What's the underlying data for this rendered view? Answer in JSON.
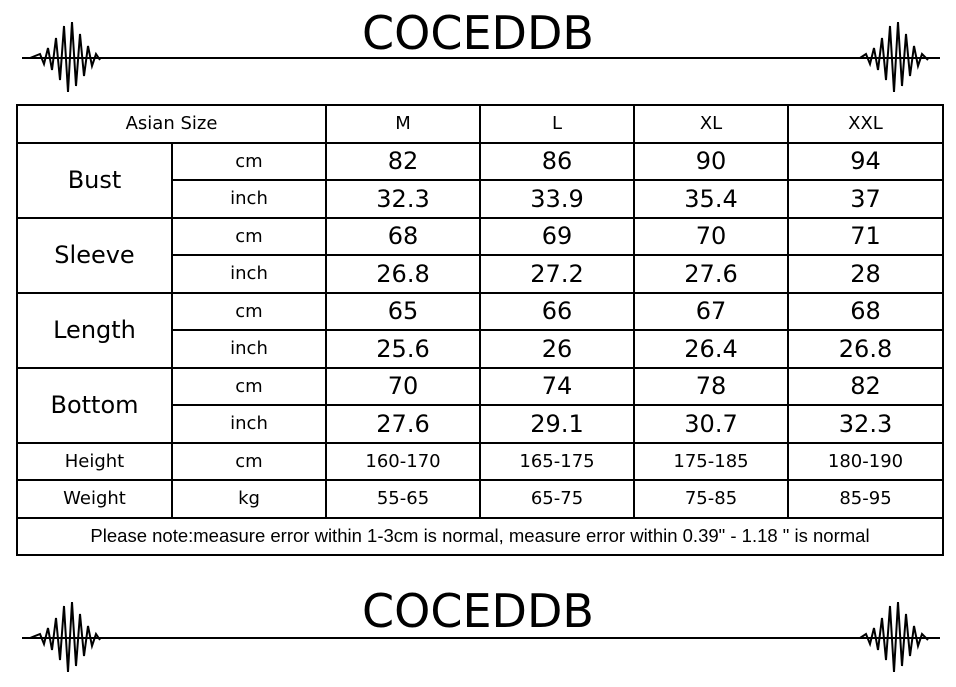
{
  "header": {
    "title": "COCEDDB"
  },
  "table": {
    "columns": [
      "Asian Size",
      "M",
      "L",
      "XL",
      "XXL"
    ],
    "groups": [
      {
        "label": "Bust",
        "rows": [
          {
            "unit": "cm",
            "values": [
              82,
              86,
              90,
              94
            ]
          },
          {
            "unit": "inch",
            "values": [
              32.3,
              33.9,
              35.4,
              37
            ]
          }
        ]
      },
      {
        "label": "Sleeve",
        "rows": [
          {
            "unit": "cm",
            "values": [
              68,
              69,
              70,
              71
            ]
          },
          {
            "unit": "inch",
            "values": [
              26.8,
              27.2,
              27.6,
              28
            ]
          }
        ]
      },
      {
        "label": "Length",
        "rows": [
          {
            "unit": "cm",
            "values": [
              65,
              66,
              67,
              68
            ]
          },
          {
            "unit": "inch",
            "values": [
              25.6,
              26,
              26.4,
              26.8
            ]
          }
        ]
      },
      {
        "label": "Bottom",
        "rows": [
          {
            "unit": "cm",
            "values": [
              70,
              74,
              78,
              82
            ]
          },
          {
            "unit": "inch",
            "values": [
              27.6,
              29.1,
              30.7,
              32.3
            ]
          }
        ]
      }
    ],
    "extra": [
      {
        "label": "Height",
        "unit": "cm",
        "values": [
          "160-170",
          "165-175",
          "175-185",
          "180-190"
        ]
      },
      {
        "label": "Weight",
        "unit": "kg",
        "values": [
          "55-65",
          "65-75",
          "75-85",
          "85-95"
        ]
      }
    ],
    "note": "Please note:measure error within 1-3cm is normal, measure error within 0.39\" - 1.18 \" is normal"
  },
  "footer": {
    "title": "COCEDDB"
  }
}
